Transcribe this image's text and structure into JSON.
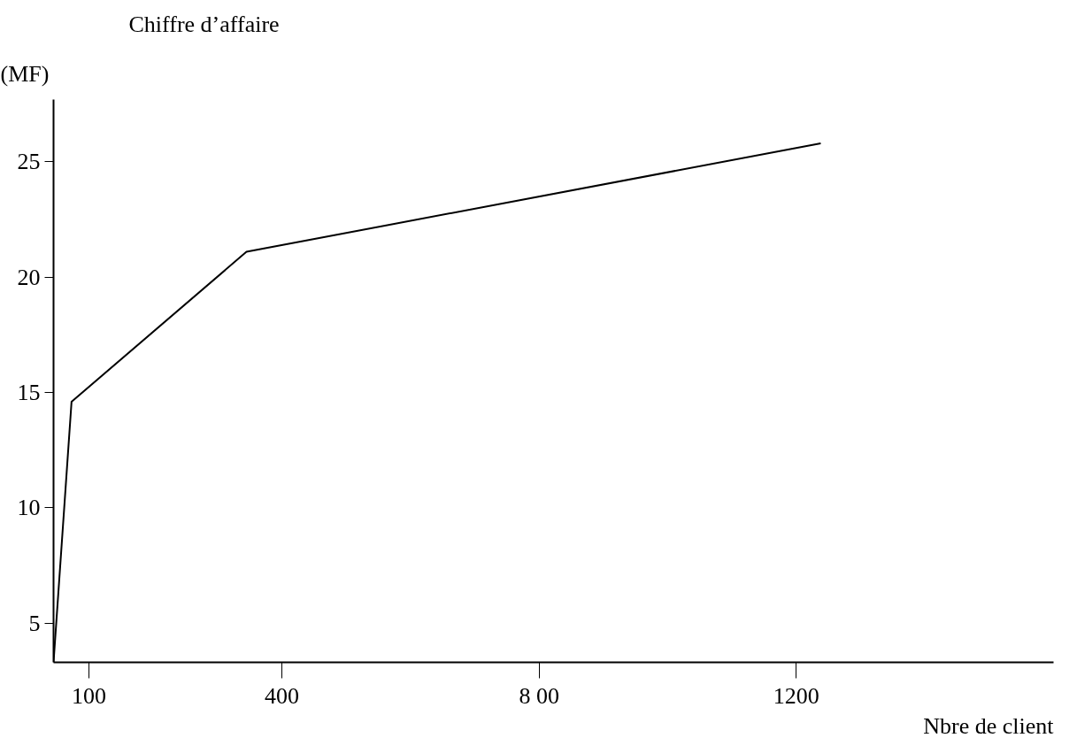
{
  "chart_data": {
    "type": "line",
    "title": "Chiffre d’affaire",
    "ylabel": "(MF)",
    "xlabel": "Nbre de client",
    "x": [
      45,
      73,
      345,
      1238
    ],
    "series": [
      {
        "color": "#000000",
        "values": [
          3.3,
          14.6,
          21.1,
          25.8
        ]
      }
    ],
    "xlim": [
      45,
      1600
    ],
    "ylim": [
      3.3,
      27.7
    ],
    "xticks": [
      100,
      400,
      {
        "value": 800,
        "label": "8 00"
      },
      1200
    ],
    "yticks": [
      5,
      10,
      15,
      20,
      25
    ],
    "grid": false,
    "marker": "none",
    "line_style": "solid"
  }
}
